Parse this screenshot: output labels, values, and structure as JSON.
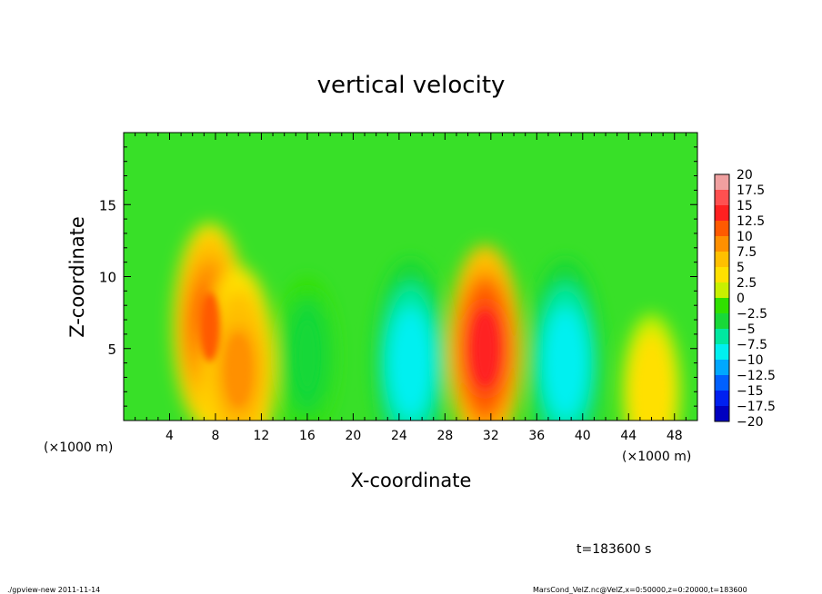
{
  "chart_data": {
    "type": "heatmap",
    "title": "vertical velocity",
    "xlabel": "X-coordinate",
    "ylabel": "Z-coordinate",
    "x_unit_left": "(×1000 m)",
    "x_unit_right": "(×1000 m)",
    "xlim": [
      0,
      50
    ],
    "ylim": [
      0,
      20
    ],
    "x_ticks": [
      4,
      8,
      12,
      16,
      20,
      24,
      28,
      32,
      36,
      40,
      44,
      48
    ],
    "y_ticks": [
      5,
      10,
      15
    ],
    "grid": false,
    "colorbar": {
      "position": "right",
      "levels": [
        20,
        17.5,
        15,
        12.5,
        10,
        7.5,
        5,
        2.5,
        0,
        -2.5,
        -5,
        -7.5,
        -10,
        -12.5,
        -15,
        -17.5,
        -20
      ],
      "level_labels": [
        "20",
        "17.5",
        "15",
        "12.5",
        "10",
        "7.5",
        "5",
        "2.5",
        "0",
        "−2.5",
        "−5",
        "−7.5",
        "−10",
        "−12.5",
        "−15",
        "−17.5",
        "−20"
      ],
      "colors": [
        "#f0a0a0",
        "#ff5050",
        "#ff2020",
        "#ff5a00",
        "#ff9000",
        "#ffc000",
        "#ffe000",
        "#c8f000",
        "#30e000",
        "#18d838",
        "#00e8a0",
        "#00f0f0",
        "#00a8ff",
        "#0060ff",
        "#0020f0",
        "#0000c0",
        "#7020c0"
      ]
    },
    "features": [
      {
        "x": 7.5,
        "z": 6.5,
        "peak": 11
      },
      {
        "x": 10,
        "z": 3.5,
        "peak": 8
      },
      {
        "x": 16,
        "z": 4.5,
        "peak": -5
      },
      {
        "x": 25,
        "z": 4,
        "peak": -9
      },
      {
        "x": 31.5,
        "z": 5,
        "peak": 14
      },
      {
        "x": 38.5,
        "z": 4,
        "peak": -9
      },
      {
        "x": 46,
        "z": 2,
        "peak": 4
      }
    ],
    "time_label": "t=183600  s"
  },
  "footer": {
    "left": "./gpview-new   2011-11-14",
    "right": "MarsCond_VelZ.nc@VelZ,x=0:50000,z=0:20000,t=183600"
  }
}
